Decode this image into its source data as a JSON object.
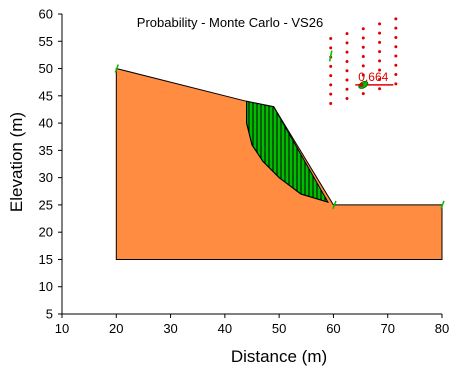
{
  "chart_data": {
    "type": "scatter",
    "title": "Probability - Monte Carlo - VS26",
    "xlabel": "Distance (m)",
    "ylabel": "Elevation (m)",
    "xlim": [
      10,
      80
    ],
    "ylim": [
      5,
      60
    ],
    "xticks": [
      "10",
      "20",
      "30",
      "40",
      "50",
      "60",
      "70",
      "80"
    ],
    "yticks": [
      "5",
      "10",
      "15",
      "20",
      "25",
      "30",
      "35",
      "40",
      "45",
      "50",
      "55",
      "60"
    ],
    "grid": false,
    "slope_profile": [
      [
        20,
        15
      ],
      [
        20,
        50
      ],
      [
        44,
        44
      ],
      [
        49,
        43
      ],
      [
        60,
        25
      ],
      [
        80,
        25
      ],
      [
        80,
        15
      ]
    ],
    "slip_surface": [
      [
        44,
        44
      ],
      [
        44,
        40
      ],
      [
        45,
        36
      ],
      [
        47,
        33
      ],
      [
        50,
        30
      ],
      [
        54,
        27
      ],
      [
        59,
        25.5
      ]
    ],
    "grid_center": {
      "rows": [
        {
          "x": [
            59.5,
            62.5,
            65.5,
            68.5,
            71.5
          ],
          "y": [
            55.5,
            56.4,
            57.3,
            58.2,
            59.1
          ]
        },
        {
          "x": [
            59.5,
            62.5,
            65.5,
            68.5,
            71.5
          ],
          "y": [
            53.8,
            54.7,
            55.6,
            56.5,
            57.4
          ]
        },
        {
          "x": [
            59.5,
            62.5,
            65.5,
            68.5,
            71.5
          ],
          "y": [
            52.1,
            53.0,
            53.9,
            54.8,
            55.7
          ]
        },
        {
          "x": [
            59.5,
            62.5,
            65.5,
            68.5,
            71.5
          ],
          "y": [
            50.4,
            51.3,
            52.2,
            53.1,
            54.0
          ]
        },
        {
          "x": [
            59.5,
            62.5,
            65.5,
            68.5,
            71.5
          ],
          "y": [
            48.7,
            49.6,
            50.5,
            51.4,
            52.3
          ]
        },
        {
          "x": [
            59.5,
            62.5,
            65.5,
            68.5,
            71.5
          ],
          "y": [
            47.0,
            47.9,
            48.8,
            49.7,
            50.6
          ]
        },
        {
          "x": [
            59.5,
            62.5,
            65.5,
            68.5,
            71.5
          ],
          "y": [
            45.3,
            46.2,
            47.1,
            48.0,
            48.9
          ]
        },
        {
          "x": [
            59.5,
            62.5,
            65.5,
            68.5,
            71.5
          ],
          "y": [
            43.6,
            44.5,
            45.4,
            46.3,
            47.2
          ]
        }
      ]
    },
    "critical_center": {
      "x": 65.5,
      "y": 47.0,
      "label": "0.664"
    },
    "colors": {
      "soil": "#FF8C40",
      "slip_mass": "#00BB00",
      "grid_points": "#E00000",
      "axis": "#000000"
    }
  }
}
